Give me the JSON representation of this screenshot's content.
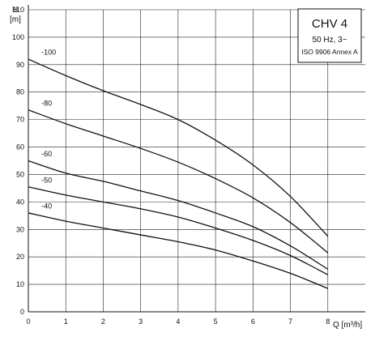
{
  "chart_data": {
    "type": "line",
    "title": "CHV 4",
    "subtitle": "50 Hz, 3~",
    "standard": "ISO 9906 Annex A",
    "y_axis": {
      "symbol": "H",
      "unit": "[m]",
      "min": 0,
      "max": 110,
      "tick_step": 10
    },
    "x_axis": {
      "label": "Q [m³/h]",
      "min": 0,
      "max": 9,
      "ticks": [
        0,
        1,
        2,
        3,
        4,
        5,
        6,
        7,
        8
      ]
    },
    "grid": true,
    "series": [
      {
        "name": "-100",
        "x": [
          0,
          1,
          2,
          3,
          4,
          5,
          6,
          7,
          8
        ],
        "y": [
          92,
          86,
          80.5,
          75.5,
          70,
          62.5,
          53.5,
          42,
          27.5
        ]
      },
      {
        "name": "-80",
        "x": [
          0,
          1,
          2,
          3,
          4,
          5,
          6,
          7,
          8
        ],
        "y": [
          73.5,
          68.5,
          64,
          59.5,
          54.5,
          48.5,
          41.5,
          32.5,
          21.5
        ]
      },
      {
        "name": "-60",
        "x": [
          0,
          1,
          2,
          3,
          4,
          5,
          6,
          7,
          8
        ],
        "y": [
          55,
          50.5,
          47.5,
          44,
          40.5,
          36,
          31,
          24,
          15.5
        ]
      },
      {
        "name": "-50",
        "x": [
          0,
          1,
          2,
          3,
          4,
          5,
          6,
          7,
          8
        ],
        "y": [
          45.5,
          42.5,
          40,
          37.5,
          34.5,
          30.5,
          26,
          20.5,
          13.5
        ]
      },
      {
        "name": "-40",
        "x": [
          0,
          1,
          2,
          3,
          4,
          5,
          6,
          7,
          8
        ],
        "y": [
          36,
          33,
          30.5,
          28,
          25.5,
          22.5,
          18.5,
          14,
          8.5
        ]
      }
    ]
  }
}
